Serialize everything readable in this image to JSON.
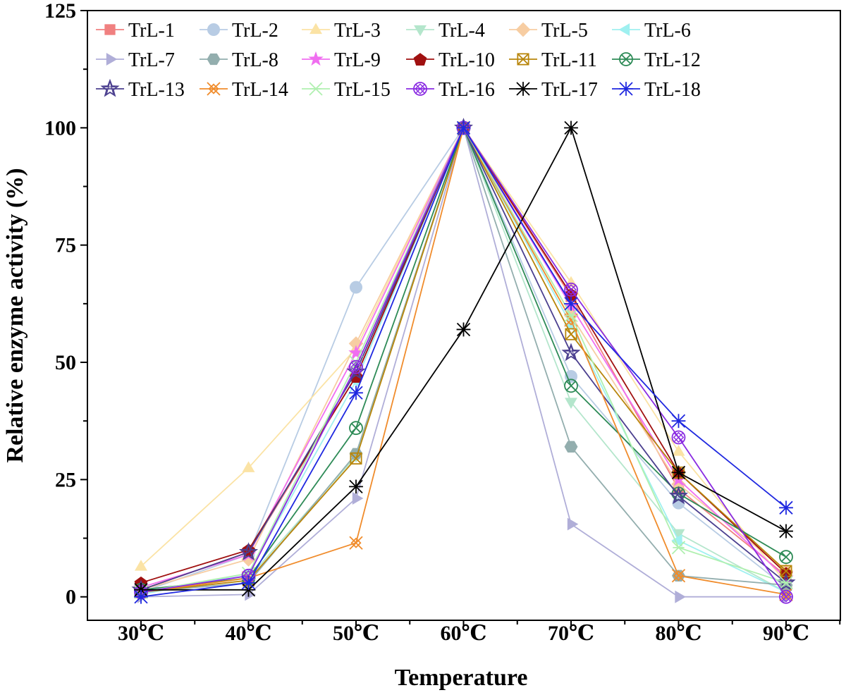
{
  "chart_data": {
    "type": "line",
    "title": "",
    "xlabel": "Temperature",
    "ylabel": "Relative enzyme activity (%)",
    "categories": [
      "30℃",
      "40℃",
      "50℃",
      "60℃",
      "70℃",
      "80℃",
      "90℃"
    ],
    "ylim": [
      -5,
      125
    ],
    "yticks": [
      0,
      25,
      50,
      75,
      100,
      125
    ],
    "grid": false,
    "legend_position": "top-left",
    "series": [
      {
        "name": "TrL-1",
        "color": "#f08080",
        "marker": "square",
        "values": [
          1.5,
          9.5,
          47,
          100,
          64,
          23,
          4.5
        ]
      },
      {
        "name": "TrL-2",
        "color": "#b8cce4",
        "marker": "circle",
        "values": [
          1,
          9,
          66,
          100,
          47,
          20,
          2
        ]
      },
      {
        "name": "TrL-3",
        "color": "#fbe3a5",
        "marker": "triangle-up",
        "values": [
          6.5,
          27.5,
          53,
          100,
          67,
          31,
          3
        ]
      },
      {
        "name": "TrL-4",
        "color": "#b4e6cc",
        "marker": "triangle-down",
        "values": [
          1,
          4,
          30,
          100,
          41.5,
          13.5,
          1
        ]
      },
      {
        "name": "TrL-5",
        "color": "#f7cda2",
        "marker": "diamond",
        "values": [
          1.5,
          8,
          54,
          100,
          60,
          24,
          5.5
        ]
      },
      {
        "name": "TrL-6",
        "color": "#9ff0f0",
        "marker": "triangle-left",
        "values": [
          0.5,
          5,
          46,
          100,
          58,
          12,
          1
        ]
      },
      {
        "name": "TrL-7",
        "color": "#b0aed8",
        "marker": "triangle-right",
        "values": [
          0,
          0.5,
          21,
          100,
          15.5,
          0,
          0
        ]
      },
      {
        "name": "TrL-8",
        "color": "#93aeae",
        "marker": "hexagon",
        "values": [
          1,
          3,
          30.5,
          100,
          32,
          4.5,
          2.5
        ]
      },
      {
        "name": "TrL-9",
        "color": "#f06ef0",
        "marker": "star",
        "values": [
          2,
          9,
          52,
          100,
          62,
          25,
          4
        ]
      },
      {
        "name": "TrL-10",
        "color": "#a01010",
        "marker": "pentagon",
        "values": [
          3,
          10,
          47,
          100,
          64.5,
          26.5,
          5
        ]
      },
      {
        "name": "TrL-11",
        "color": "#b8860b",
        "marker": "box-x",
        "values": [
          1,
          3.5,
          29.5,
          100,
          56,
          26.5,
          5.5
        ]
      },
      {
        "name": "TrL-12",
        "color": "#2e8b57",
        "marker": "circle-x",
        "values": [
          1.5,
          4,
          36,
          100,
          45,
          22,
          8.5
        ]
      },
      {
        "name": "TrL-13",
        "color": "#4b3f8f",
        "marker": "star-outline",
        "values": [
          1.5,
          9.5,
          48,
          100,
          52,
          21.5,
          3
        ]
      },
      {
        "name": "TrL-14",
        "color": "#f08c2c",
        "marker": "x-diamond",
        "values": [
          1,
          4,
          11.5,
          100,
          59,
          4.5,
          0.5
        ]
      },
      {
        "name": "TrL-15",
        "color": "#b0f0b0",
        "marker": "x-asterisk",
        "values": [
          1,
          5,
          50,
          100,
          60,
          10.5,
          3
        ]
      },
      {
        "name": "TrL-16",
        "color": "#8a2be2",
        "marker": "circle-x-diamond",
        "values": [
          1,
          4.5,
          49,
          100,
          65.5,
          34,
          0
        ]
      },
      {
        "name": "TrL-17",
        "color": "#000000",
        "marker": "asterisk",
        "values": [
          1.5,
          1.5,
          23.5,
          57,
          100,
          26.5,
          14
        ]
      },
      {
        "name": "TrL-18",
        "color": "#1f28e0",
        "marker": "asterisk",
        "values": [
          0,
          3,
          43.5,
          100,
          62.5,
          37.5,
          19
        ]
      }
    ]
  }
}
